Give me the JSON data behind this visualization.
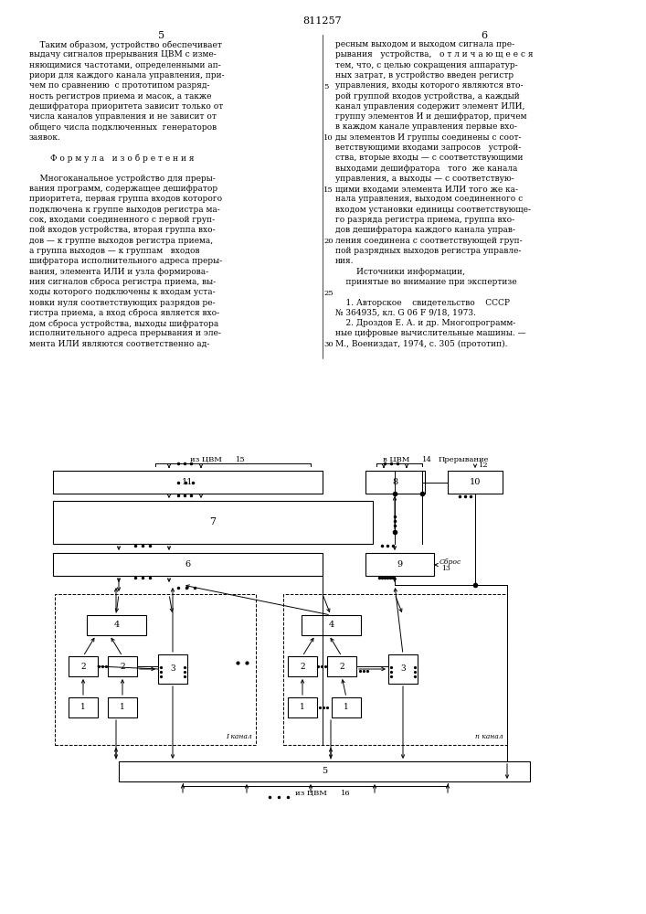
{
  "title": "811257",
  "bg_color": "#ffffff",
  "text_color": "#000000",
  "left_col_lines": [
    "    Таким образом, устройство обеспечивает",
    "выдачу сигналов прерывания ЦВМ с изме-",
    "няющимися частотами, определенными ап-",
    "риори для каждого канала управления, при-",
    "чем по сравнению  с прототипом разряд-",
    "ность регистров приема и масок, а также",
    "дешифратора приоритета зависит только от",
    "числа каналов управления и не зависит от",
    "общего числа подключенных  генераторов",
    "заявок.",
    "",
    "        Ф о р м у л а   и з о б р е т е н и я",
    "",
    "    Многоканальное устройство для преры-",
    "вания программ, содержащее дешифратор",
    "приоритета, первая группа входов которого",
    "подключена к группе выходов регистра ма-",
    "сок, входами соединенного с первой груп-",
    "пой входов устройства, вторая группа вхо-",
    "дов — к группе выходов регистра приема,",
    "а группа выходов — к группам   входов",
    "шифратора исполнительного адреса преры-",
    "вания, элемента ИЛИ и узла формирова-",
    "ния сигналов сброса регистра приема, вы-",
    "ходы которого подключены к входам уста-",
    "новки нуля соответствующих разрядов ре-",
    "гистра приема, а вход сброса является вхо-",
    "дом сброса устройства, выходы шифратора",
    "исполнительного адреса прерывания и эле-",
    "мента ИЛИ являются соответственно ад-"
  ],
  "right_col_lines": [
    "ресным выходом и выходом сигнала пре-",
    "рывания   устройства,   о т л и ч а ю щ е е с я",
    "тем, что, с целью сокращения аппаратур-",
    "ных затрат, в устройство введен регистр",
    "управления, входы которого являются вто-",
    "рой группой входов устройства, а каждый",
    "канал управления содержит элемент ИЛИ,",
    "группу элементов И и дешифратор, причем",
    "в каждом канале управления первые вхо-",
    "ды элементов И группы соединены с соот-",
    "ветствующими входами запросов   устрой-",
    "ства, вторые входы — с соответствующими",
    "выходами дешифратора   того  же канала",
    "управления, а выходы — с соответствую-",
    "щими входами элемента ИЛИ того же ка-",
    "нала управления, выходом соединенного с",
    "входом установки единицы соответствующе-",
    "го разряда регистра приема, группа вхо-",
    "дов дешифратора каждого канала управ-",
    "ления соединена с соответствующей груп-",
    "пой разрядных выходов регистра управле-",
    "ния.",
    "        Источники информации,",
    "    принятые во внимание при экспертизе",
    "",
    "    1. Авторское    свидетельство    СССР",
    "№ 364935, кл. G 06 F 9/18, 1973.",
    "    2. Дроздов Е. А. и др. Многопрограмм-",
    "ные цифровые вычислительные машины. —",
    "М., Воениздат, 1974, с. 305 (прототип)."
  ]
}
